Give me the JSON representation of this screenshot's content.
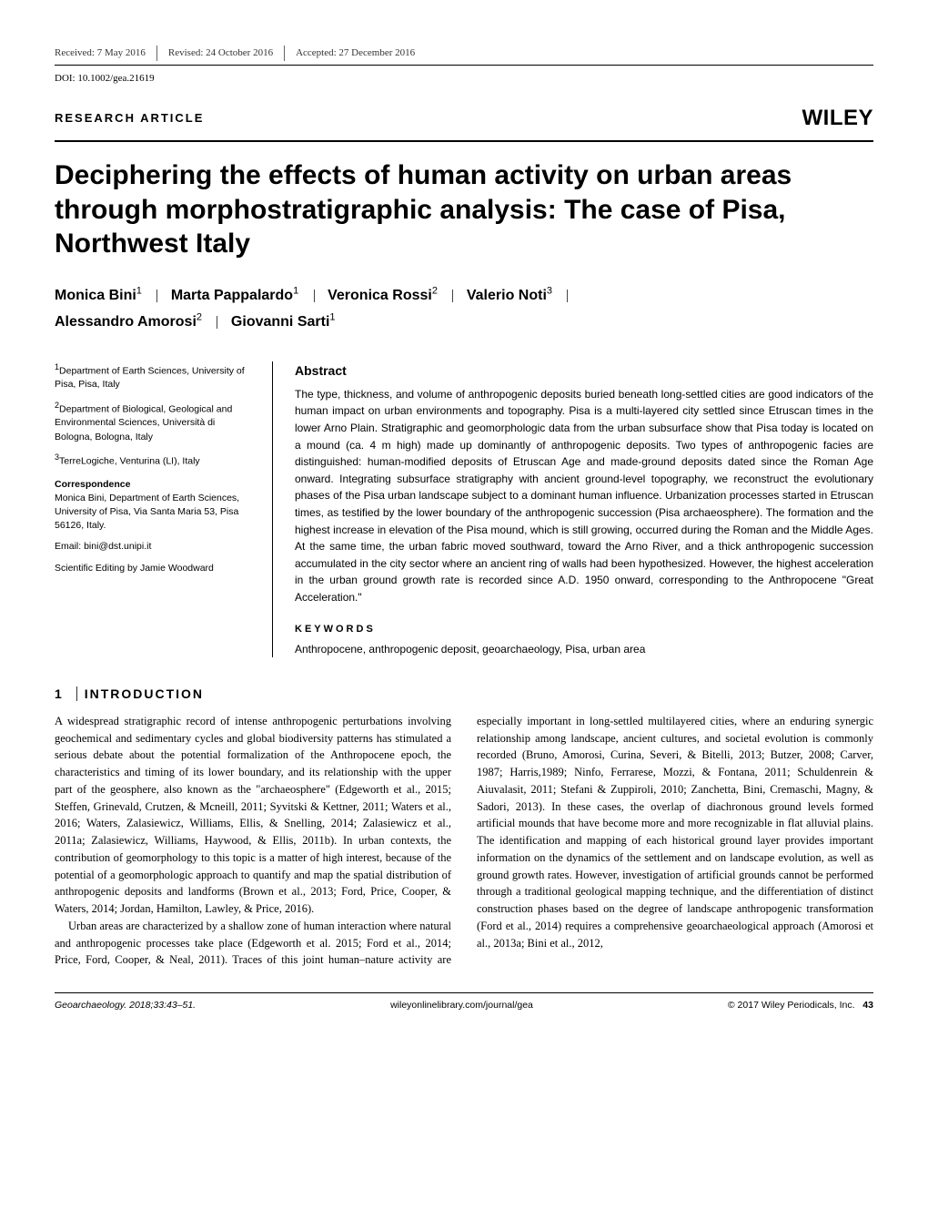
{
  "topMeta": {
    "received": "Received: 7 May 2016",
    "revised": "Revised: 24 October 2016",
    "accepted": "Accepted: 27 December 2016"
  },
  "doi": "DOI: 10.1002/gea.21619",
  "articleType": "RESEARCH ARTICLE",
  "publisherLogo": "WILEY",
  "title": "Deciphering the effects of human activity on urban areas through morphostratigraphic analysis: The case of Pisa, Northwest Italy",
  "authors": [
    {
      "name": "Monica Bini",
      "sup": "1"
    },
    {
      "name": "Marta Pappalardo",
      "sup": "1"
    },
    {
      "name": "Veronica Rossi",
      "sup": "2"
    },
    {
      "name": "Valerio Noti",
      "sup": "3"
    },
    {
      "name": "Alessandro Amorosi",
      "sup": "2"
    },
    {
      "name": "Giovanni Sarti",
      "sup": "1"
    }
  ],
  "affiliations": {
    "a1": {
      "sup": "1",
      "text": "Department of Earth Sciences, University of Pisa, Pisa, Italy"
    },
    "a2": {
      "sup": "2",
      "text": "Department of Biological, Geological and Environmental Sciences, Università di Bologna, Bologna, Italy"
    },
    "a3": {
      "sup": "3",
      "text": "TerreLogiche, Venturina (LI), Italy"
    },
    "corrHead": "Correspondence",
    "corrBody": "Monica Bini, Department of Earth Sciences, University of Pisa, Via Santa Maria 53, Pisa 56126, Italy.",
    "email": "Email: bini@dst.unipi.it",
    "editing": "Scientific Editing by Jamie Woodward"
  },
  "abstract": {
    "head": "Abstract",
    "text": "The type, thickness, and volume of anthropogenic deposits buried beneath long-settled cities are good indicators of the human impact on urban environments and topography. Pisa is a multi-layered city settled since Etruscan times in the lower Arno Plain. Stratigraphic and geomorphologic data from the urban subsurface show that Pisa today is located on a mound (ca. 4 m high) made up dominantly of anthropogenic deposits. Two types of anthropogenic facies are distinguished: human-modified deposits of Etruscan Age and made-ground deposits dated since the Roman Age onward. Integrating subsurface stratigraphy with ancient ground-level topography, we reconstruct the evolutionary phases of the Pisa urban landscape subject to a dominant human influence. Urbanization processes started in Etruscan times, as testified by the lower boundary of the anthropogenic succession (Pisa archaeosphere). The formation and the highest increase in elevation of the Pisa mound, which is still growing, occurred during the Roman and the Middle Ages. At the same time, the urban fabric moved southward, toward the Arno River, and a thick anthropogenic succession accumulated in the city sector where an ancient ring of walls had been hypothesized. However, the highest acceleration in the urban ground growth rate is recorded since A.D. 1950 onward, corresponding to the Anthropocene \"Great Acceleration.\"",
    "kwHead": "KEYWORDS",
    "kwList": "Anthropocene, anthropogenic deposit, geoarchaeology, Pisa, urban area"
  },
  "section1": {
    "num": "1",
    "head": "INTRODUCTION",
    "p1": "A widespread stratigraphic record of intense anthropogenic perturbations involving geochemical and sedimentary cycles and global biodiversity patterns has stimulated a serious debate about the potential formalization of the Anthropocene epoch, the characteristics and timing of its lower boundary, and its relationship with the upper part of the geosphere, also known as the \"archaeosphere\" (Edgeworth et al., 2015; Steffen, Grinevald, Crutzen, & Mcneill, 2011; Syvitski & Kettner, 2011; Waters et al., 2016; Waters, Zalasiewicz, Williams, Ellis, & Snelling, 2014; Zalasiewicz et al., 2011a; Zalasiewicz, Williams, Haywood, & Ellis, 2011b). In urban contexts, the contribution of geomorphology to this topic is a matter of high interest, because of the potential of a geomorphologic approach to quantify and map the spatial distribution of anthropogenic deposits and landforms (Brown et al., 2013; Ford, Price, Cooper, & Waters, 2014; Jordan, Hamilton, Lawley, & Price, 2016).",
    "p2": "Urban areas are characterized by a shallow zone of human interaction where natural and anthropogenic processes take place (Edgeworth et al. 2015; Ford et al., 2014; Price, Ford, Cooper, & Neal, 2011). Traces of this joint human–nature activity are especially important in long-settled multilayered cities, where an enduring synergic relationship among landscape, ancient cultures, and societal evolution is commonly recorded (Bruno, Amorosi, Curina, Severi, & Bitelli, 2013; Butzer, 2008; Carver, 1987; Harris,1989; Ninfo, Ferrarese, Mozzi, & Fontana, 2011; Schuldenrein & Aiuvalasit, 2011; Stefani & Zuppiroli, 2010; Zanchetta, Bini, Cremaschi, Magny, & Sadori, 2013). In these cases, the overlap of diachronous ground levels formed artificial mounds that have become more and more recognizable in flat alluvial plains. The identification and mapping of each historical ground layer provides important information on the dynamics of the settlement and on landscape evolution, as well as ground growth rates. However, investigation of artificial grounds cannot be performed through a traditional geological mapping technique, and the differentiation of distinct construction phases based on the degree of landscape anthropogenic transformation (Ford et al., 2014) requires a comprehensive geoarchaeological approach (Amorosi et al., 2013a; Bini et al., 2012,"
  },
  "footer": {
    "left": "Geoarchaeology. 2018;33:43–51.",
    "center": "wileyonlinelibrary.com/journal/gea",
    "right": "© 2017 Wiley Periodicals, Inc.",
    "page": "43"
  }
}
